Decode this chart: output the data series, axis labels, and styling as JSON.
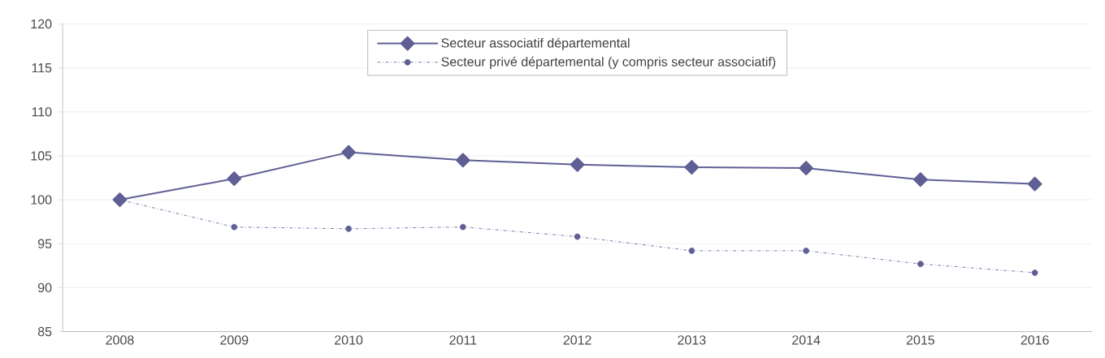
{
  "chart_data": {
    "type": "line",
    "categories": [
      "2008",
      "2009",
      "2010",
      "2011",
      "2012",
      "2013",
      "2014",
      "2015",
      "2016"
    ],
    "series": [
      {
        "name": "Secteur associatif départemental",
        "color": "#5f5f95",
        "marker": "diamond",
        "line_style": "solid",
        "values": [
          100,
          102.4,
          105.4,
          104.5,
          104.0,
          103.7,
          103.6,
          102.3,
          101.8
        ]
      },
      {
        "name": "Secteur privé départemental (y compris secteur associatif)",
        "color": "#5f5f95",
        "marker": "circle",
        "line_style": "dashed",
        "values": [
          100,
          96.9,
          96.7,
          96.9,
          95.8,
          94.2,
          94.2,
          92.7,
          91.7
        ]
      }
    ],
    "ylim": [
      85,
      120
    ],
    "yticks": [
      85,
      90,
      95,
      100,
      105,
      110,
      115,
      120
    ],
    "grid": "y",
    "legend": "top"
  }
}
